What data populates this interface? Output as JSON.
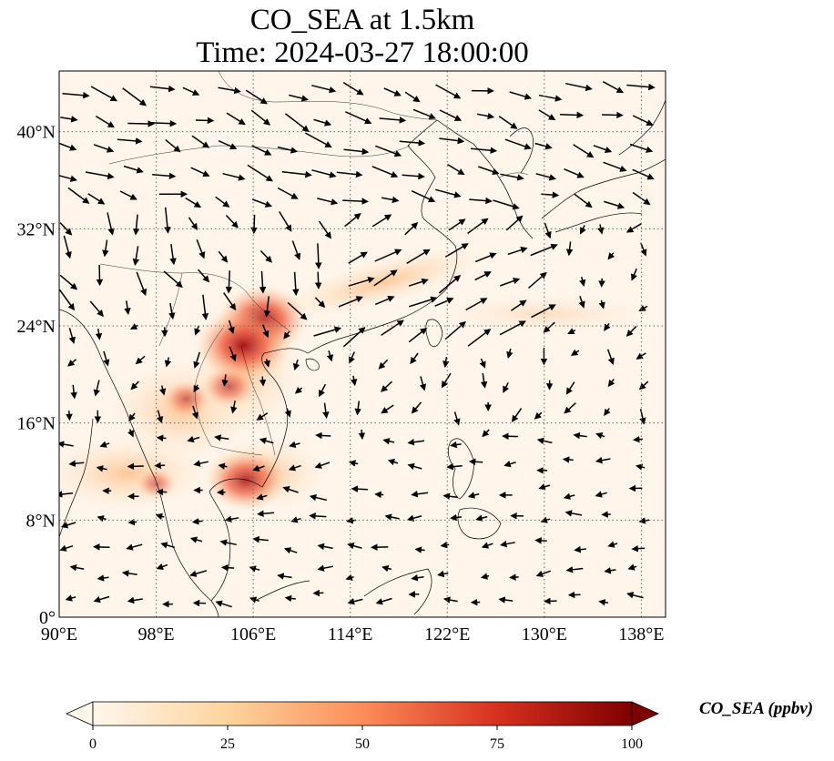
{
  "title_line1": "CO_SEA at 1.5km",
  "title_line2": "Time: 2024-03-27 18:00:00",
  "map": {
    "lon_range": [
      90,
      140
    ],
    "lat_range": [
      0,
      45
    ],
    "lon_ticks": [
      {
        "value": 90,
        "label": "90°E"
      },
      {
        "value": 98,
        "label": "98°E"
      },
      {
        "value": 106,
        "label": "106°E"
      },
      {
        "value": 114,
        "label": "114°E"
      },
      {
        "value": 122,
        "label": "122°E"
      },
      {
        "value": 130,
        "label": "130°E"
      },
      {
        "value": 138,
        "label": "138°E"
      }
    ],
    "lat_ticks": [
      {
        "value": 0,
        "label": "0°"
      },
      {
        "value": 8,
        "label": "8°N"
      },
      {
        "value": 16,
        "label": "16°N"
      },
      {
        "value": 24,
        "label": "24°N"
      },
      {
        "value": 32,
        "label": "32°N"
      },
      {
        "value": 40,
        "label": "40°N"
      }
    ],
    "gridlines": "dotted",
    "background_color": "#fff5eb",
    "hotspots": [
      {
        "lon": 106.8,
        "lat": 24.5,
        "value": 95
      },
      {
        "lon": 105.2,
        "lat": 22.4,
        "value": 100
      },
      {
        "lon": 105.4,
        "lat": 11.3,
        "value": 80
      },
      {
        "lon": 104.0,
        "lat": 19.0,
        "value": 45
      },
      {
        "lon": 100.5,
        "lat": 18.0,
        "value": 35
      },
      {
        "lon": 98.0,
        "lat": 11.0,
        "value": 25
      }
    ]
  },
  "colorbar": {
    "label": "CO_SEA (ppbv)",
    "min": 0,
    "max": 100,
    "ticks": [
      "0",
      "25",
      "50",
      "75",
      "100"
    ],
    "colormap": "OrRd",
    "colors": [
      "#fff7ec",
      "#fdd49e",
      "#fc8d59",
      "#d7301f",
      "#7f0000"
    ]
  }
}
